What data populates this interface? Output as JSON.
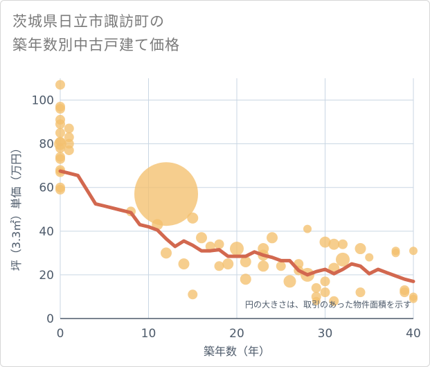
{
  "title_line1": "茨城県日立市諏訪町の",
  "title_line2": "築年数別中古戸建て価格",
  "chart_data": {
    "type": "scatter",
    "title": "茨城県日立市諏訪町の築年数別中古戸建て価格",
    "xlabel": "築年数（年）",
    "ylabel": "坪（3.3㎡）単価（万円）",
    "xlim": [
      0,
      40
    ],
    "ylim": [
      0,
      110
    ],
    "xticks": [
      0,
      10,
      20,
      30,
      40
    ],
    "yticks": [
      0,
      20,
      40,
      60,
      80,
      100
    ],
    "grid": true,
    "annotation": "円の大きさは、取引のあった物件面積を示す",
    "colors": {
      "bubble": "#f3c06e",
      "line": "#d2684f",
      "grid": "#c9d6e3",
      "axis": "#4d5a6a"
    },
    "points": [
      {
        "x": 0,
        "y": 107,
        "s": 7
      },
      {
        "x": 0,
        "y": 97,
        "s": 7
      },
      {
        "x": 0,
        "y": 96,
        "s": 7
      },
      {
        "x": 0,
        "y": 91,
        "s": 7
      },
      {
        "x": 0,
        "y": 89,
        "s": 7
      },
      {
        "x": 0,
        "y": 85,
        "s": 7
      },
      {
        "x": 0,
        "y": 81,
        "s": 7
      },
      {
        "x": 0,
        "y": 80,
        "s": 9
      },
      {
        "x": 0,
        "y": 78,
        "s": 7
      },
      {
        "x": 0,
        "y": 74,
        "s": 7
      },
      {
        "x": 0,
        "y": 73,
        "s": 7
      },
      {
        "x": 0,
        "y": 68,
        "s": 7
      },
      {
        "x": 0,
        "y": 67,
        "s": 7
      },
      {
        "x": 0,
        "y": 60,
        "s": 7
      },
      {
        "x": 0,
        "y": 59,
        "s": 7
      },
      {
        "x": 1,
        "y": 87,
        "s": 7
      },
      {
        "x": 1,
        "y": 83,
        "s": 7
      },
      {
        "x": 1,
        "y": 80,
        "s": 7
      },
      {
        "x": 1,
        "y": 77,
        "s": 7
      },
      {
        "x": 8,
        "y": 49,
        "s": 7
      },
      {
        "x": 11,
        "y": 43,
        "s": 8
      },
      {
        "x": 12,
        "y": 57,
        "s": 46
      },
      {
        "x": 12,
        "y": 30,
        "s": 8
      },
      {
        "x": 14,
        "y": 25,
        "s": 8
      },
      {
        "x": 15,
        "y": 46,
        "s": 8
      },
      {
        "x": 15,
        "y": 11,
        "s": 7
      },
      {
        "x": 16,
        "y": 37,
        "s": 8
      },
      {
        "x": 17,
        "y": 33,
        "s": 7
      },
      {
        "x": 18,
        "y": 34,
        "s": 7
      },
      {
        "x": 18,
        "y": 24,
        "s": 7
      },
      {
        "x": 19,
        "y": 25,
        "s": 8
      },
      {
        "x": 20,
        "y": 32,
        "s": 10
      },
      {
        "x": 21,
        "y": 26,
        "s": 8
      },
      {
        "x": 21,
        "y": 18,
        "s": 8
      },
      {
        "x": 23,
        "y": 32,
        "s": 8
      },
      {
        "x": 23,
        "y": 29,
        "s": 8
      },
      {
        "x": 23,
        "y": 24,
        "s": 8
      },
      {
        "x": 24,
        "y": 37,
        "s": 8
      },
      {
        "x": 25,
        "y": 24,
        "s": 7
      },
      {
        "x": 26,
        "y": 17,
        "s": 9
      },
      {
        "x": 27,
        "y": 25,
        "s": 7
      },
      {
        "x": 27,
        "y": 22,
        "s": 7
      },
      {
        "x": 28,
        "y": 41,
        "s": 6
      },
      {
        "x": 28,
        "y": 20,
        "s": 10
      },
      {
        "x": 29,
        "y": 14,
        "s": 7
      },
      {
        "x": 29,
        "y": 10,
        "s": 7
      },
      {
        "x": 29,
        "y": 8,
        "s": 6
      },
      {
        "x": 30,
        "y": 35,
        "s": 8
      },
      {
        "x": 30,
        "y": 17,
        "s": 7
      },
      {
        "x": 30,
        "y": 12,
        "s": 7
      },
      {
        "x": 31,
        "y": 34,
        "s": 8
      },
      {
        "x": 31,
        "y": 23,
        "s": 8
      },
      {
        "x": 31,
        "y": 8,
        "s": 7
      },
      {
        "x": 32,
        "y": 34,
        "s": 7
      },
      {
        "x": 32,
        "y": 27,
        "s": 10
      },
      {
        "x": 34,
        "y": 32,
        "s": 8
      },
      {
        "x": 34,
        "y": 12,
        "s": 7
      },
      {
        "x": 35,
        "y": 28,
        "s": 6
      },
      {
        "x": 38,
        "y": 31,
        "s": 6
      },
      {
        "x": 38,
        "y": 30,
        "s": 6
      },
      {
        "x": 39,
        "y": 13,
        "s": 7
      },
      {
        "x": 39,
        "y": 12,
        "s": 7
      },
      {
        "x": 40,
        "y": 31,
        "s": 6
      },
      {
        "x": 40,
        "y": 10,
        "s": 6
      },
      {
        "x": 40,
        "y": 9,
        "s": 6
      }
    ],
    "trend": {
      "x": [
        0,
        1,
        2,
        3,
        4,
        5,
        6,
        7,
        8,
        9,
        10,
        11,
        12,
        13,
        14,
        15,
        16,
        17,
        18,
        19,
        20,
        21,
        22,
        23,
        24,
        25,
        26,
        27,
        28,
        29,
        30,
        31,
        32,
        33,
        34,
        35,
        36,
        37,
        38,
        39,
        40
      ],
      "y": [
        67.5,
        66.5,
        65.5,
        59,
        52.5,
        51.5,
        50.5,
        49.5,
        48.5,
        43,
        42,
        40.5,
        36.5,
        33,
        35.5,
        33.5,
        31,
        31,
        31.5,
        28.5,
        28.5,
        28.5,
        30.5,
        29,
        28,
        26.5,
        26.5,
        22,
        20,
        21.5,
        22.5,
        20.5,
        22.5,
        25,
        24,
        20.5,
        22.5,
        21,
        19.5,
        18,
        17
      ]
    }
  }
}
